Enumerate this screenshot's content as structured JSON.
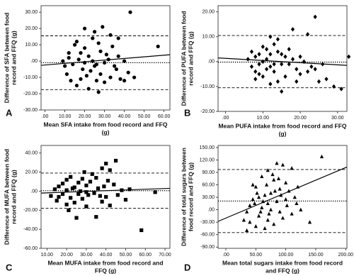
{
  "chart_data": [
    {
      "type": "scatter",
      "panel_label": "A",
      "marker": "circle",
      "color": "#000000",
      "xlabel": [
        "Mean SFA intake from food record and FFQ",
        "(g)"
      ],
      "ylabel": [
        "Difference of SFA between food",
        "record and FFQ (g)"
      ],
      "xlim": [
        -2,
        63
      ],
      "ylim": [
        -30,
        34
      ],
      "xticks": [
        {
          "value": 0,
          "label": ".00"
        },
        {
          "value": 10,
          "label": "10.00"
        },
        {
          "value": 20,
          "label": "20.00"
        },
        {
          "value": 30,
          "label": "30.00"
        },
        {
          "value": 40,
          "label": "40.00"
        },
        {
          "value": 50,
          "label": "50.00"
        },
        {
          "value": 60,
          "label": "60.00"
        }
      ],
      "yticks": [
        {
          "value": 30,
          "label": "30.00"
        },
        {
          "value": 20,
          "label": "20.00"
        },
        {
          "value": 10,
          "label": "10.00"
        },
        {
          "value": 0,
          "label": ".00"
        },
        {
          "value": -10,
          "label": "-10.00"
        },
        {
          "value": -20,
          "label": "-20.00"
        },
        {
          "value": -30,
          "label": "-30.00"
        }
      ],
      "x": [
        43,
        57,
        20,
        29,
        37,
        25,
        15,
        12,
        10,
        11,
        13,
        16,
        22,
        27,
        30,
        33,
        36,
        38,
        40,
        42,
        18,
        20,
        22,
        24,
        26,
        28,
        31,
        34,
        19,
        21,
        23,
        25,
        14,
        17,
        16,
        24,
        27,
        30,
        32,
        35,
        40,
        45,
        28,
        20,
        12,
        9,
        33,
        26,
        18,
        37
      ],
      "y": [
        30,
        9,
        20,
        21,
        14,
        18,
        10,
        2,
        -3,
        -8,
        -12,
        -15,
        -17,
        -19,
        -13,
        -10,
        -5,
        -11,
        -12,
        -7,
        5,
        8,
        3,
        0,
        -2,
        6,
        4,
        9,
        -5,
        -9,
        -6,
        -3,
        -2,
        1,
        12,
        14,
        11,
        -1,
        1,
        -3,
        0,
        -10,
        -8,
        -1,
        5,
        0,
        16,
        -12,
        -11,
        3
      ],
      "hlines": [
        {
          "y": 15.5,
          "style": "dashed"
        },
        {
          "y": -1,
          "style": "dotted"
        },
        {
          "y": -17.5,
          "style": "dashed"
        }
      ],
      "regression": {
        "x": [
          -2,
          63
        ],
        "y": [
          -2.6,
          3.9
        ]
      }
    },
    {
      "type": "scatter",
      "panel_label": "B",
      "marker": "diamond",
      "color": "#000000",
      "xlabel": [
        "Mean PUFA intake from food record and FFQ",
        "(g)"
      ],
      "ylabel": [
        "Difference of PUFA between food",
        "record and FFQ (g)"
      ],
      "xlim": [
        -2,
        32.5
      ],
      "ylim": [
        -20,
        22.5
      ],
      "xticks": [
        {
          "value": 0,
          "label": ".00"
        },
        {
          "value": 10,
          "label": "10.00"
        },
        {
          "value": 20,
          "label": "20.00"
        },
        {
          "value": 30,
          "label": "30.00"
        }
      ],
      "yticks": [
        {
          "value": 20,
          "label": "20.00"
        },
        {
          "value": 10,
          "label": "10.00"
        },
        {
          "value": 0,
          "label": ".00"
        },
        {
          "value": -10,
          "label": "-10.00"
        },
        {
          "value": -20,
          "label": "-20.00"
        }
      ],
      "x": [
        24,
        22,
        18,
        33,
        29,
        31,
        27,
        25,
        15,
        12,
        10,
        8,
        7,
        6,
        9,
        11,
        13,
        14,
        16,
        17,
        19,
        20,
        12,
        10,
        8,
        9,
        11,
        13,
        15,
        18,
        21,
        23,
        14,
        12,
        10,
        7,
        16,
        19,
        22,
        26,
        8,
        11,
        13,
        15,
        9,
        20,
        17,
        24,
        12,
        14
      ],
      "y": [
        18,
        11,
        13,
        2,
        -10,
        -11,
        -7,
        -8,
        -12,
        -9,
        -6,
        -4,
        -2,
        1,
        3,
        5,
        7,
        4,
        2,
        -1,
        -3,
        -5,
        -2,
        0,
        2,
        -1,
        -3,
        -4,
        -1,
        1,
        0,
        -2,
        9,
        10,
        6,
        4,
        -6,
        -8,
        -4,
        -1,
        -7,
        1,
        -1,
        3,
        -5,
        2,
        5,
        -3,
        3,
        -8
      ],
      "hlines": [
        {
          "y": 10.5,
          "style": "dashed"
        },
        {
          "y": -0.2,
          "style": "dotted"
        },
        {
          "y": -10.5,
          "style": "dashed"
        }
      ],
      "regression": {
        "x": [
          -2,
          32.5
        ],
        "y": [
          1.5,
          -1.5
        ]
      }
    },
    {
      "type": "scatter",
      "panel_label": "C",
      "marker": "square",
      "color": "#000000",
      "xlabel": [
        "Mean MUFA intake from food record and",
        "FFQ (g)"
      ],
      "ylabel": [
        "Difference of MUFA between food",
        "record and FFQ (g)"
      ],
      "xlim": [
        7,
        72.5
      ],
      "ylim": [
        -60,
        48
      ],
      "xticks": [
        {
          "value": 10,
          "label": "10.00"
        },
        {
          "value": 20,
          "label": "20.00"
        },
        {
          "value": 30,
          "label": "30.00"
        },
        {
          "value": 40,
          "label": "40.00"
        },
        {
          "value": 50,
          "label": "50.00"
        },
        {
          "value": 60,
          "label": "60.00"
        },
        {
          "value": 70,
          "label": "70.00"
        }
      ],
      "yticks": [
        {
          "value": 40,
          "label": "40.00"
        },
        {
          "value": 20,
          "label": "20.00"
        },
        {
          "value": 0,
          "label": ".00"
        },
        {
          "value": -20,
          "label": "-20.00"
        },
        {
          "value": -40,
          "label": "-40.00"
        },
        {
          "value": -60,
          "label": "-60.00"
        }
      ],
      "x": [
        58,
        65,
        45,
        40,
        38,
        42,
        25,
        35,
        30,
        20,
        15,
        12,
        14,
        16,
        18,
        20,
        22,
        24,
        26,
        28,
        30,
        32,
        34,
        36,
        38,
        40,
        42,
        44,
        46,
        48,
        50,
        22,
        24,
        26,
        28,
        30,
        33,
        35,
        37,
        18,
        16,
        20,
        23,
        27,
        31,
        39,
        41,
        52,
        29,
        21
      ],
      "y": [
        -41,
        -1,
        32,
        29,
        24,
        22,
        -28,
        -27,
        -16,
        -14,
        -10,
        -5,
        2,
        5,
        8,
        12,
        15,
        4,
        -3,
        -8,
        6,
        10,
        -2,
        3,
        -11,
        -6,
        -15,
        7,
        -4,
        1,
        -9,
        -7,
        -12,
        9,
        13,
        -1,
        18,
        14,
        -5,
        -3,
        -6,
        1,
        3,
        0,
        -4,
        5,
        11,
        2,
        20,
        -20
      ],
      "hlines": [
        {
          "y": 19,
          "style": "dashed"
        },
        {
          "y": 0.5,
          "style": "dotted"
        },
        {
          "y": -18,
          "style": "dashed"
        }
      ],
      "regression": {
        "x": [
          7,
          72.5
        ],
        "y": [
          -2,
          3
        ]
      }
    },
    {
      "type": "scatter",
      "panel_label": "D",
      "marker": "triangle",
      "color": "#000000",
      "xlabel": [
        "Mean total sugars intake from food record",
        "and FFQ (g)"
      ],
      "ylabel": [
        "Difference of total sugars between",
        "food record and FFQ (g)"
      ],
      "xlim": [
        -13,
        202
      ],
      "ylim": [
        -93,
        155
      ],
      "xticks": [
        {
          "value": 0,
          "label": ".00"
        },
        {
          "value": 50,
          "label": "50.00"
        },
        {
          "value": 100,
          "label": "100.00"
        },
        {
          "value": 150,
          "label": "150.00"
        },
        {
          "value": 200,
          "label": "200.00"
        }
      ],
      "yticks": [
        {
          "value": 150,
          "label": "150.00"
        },
        {
          "value": 120,
          "label": "120.00"
        },
        {
          "value": 90,
          "label": "90.00"
        },
        {
          "value": 60,
          "label": "60.00"
        },
        {
          "value": 30,
          "label": "30.00"
        },
        {
          "value": 0,
          "label": ".00"
        },
        {
          "value": -30,
          "label": "-30.00"
        },
        {
          "value": -60,
          "label": "-60.00"
        },
        {
          "value": -90,
          "label": "-90.00"
        }
      ],
      "x": [
        160,
        85,
        95,
        110,
        70,
        60,
        80,
        100,
        120,
        105,
        90,
        75,
        65,
        55,
        45,
        40,
        35,
        30,
        50,
        65,
        80,
        95,
        110,
        125,
        60,
        70,
        85,
        100,
        115,
        50,
        45,
        55,
        40,
        35,
        70,
        90,
        75,
        62,
        82,
        92,
        102,
        58,
        48,
        68,
        78,
        88,
        72,
        52,
        118,
        140
      ],
      "y": [
        128,
        112,
        108,
        100,
        95,
        80,
        72,
        65,
        55,
        45,
        50,
        40,
        35,
        30,
        25,
        10,
        -5,
        -25,
        -40,
        -45,
        -35,
        -20,
        -10,
        0,
        5,
        15,
        20,
        25,
        30,
        55,
        60,
        -15,
        -30,
        -50,
        -25,
        -5,
        0,
        20,
        45,
        35,
        10,
        -5,
        15,
        60,
        85,
        75,
        -10,
        40,
        15,
        -30
      ],
      "hlines": [
        {
          "y": 97,
          "style": "dashed"
        },
        {
          "y": 21,
          "style": "dotted"
        },
        {
          "y": -55,
          "style": "dashed"
        }
      ],
      "regression": {
        "x": [
          -13,
          202
        ],
        "y": [
          -28,
          103
        ]
      }
    }
  ]
}
